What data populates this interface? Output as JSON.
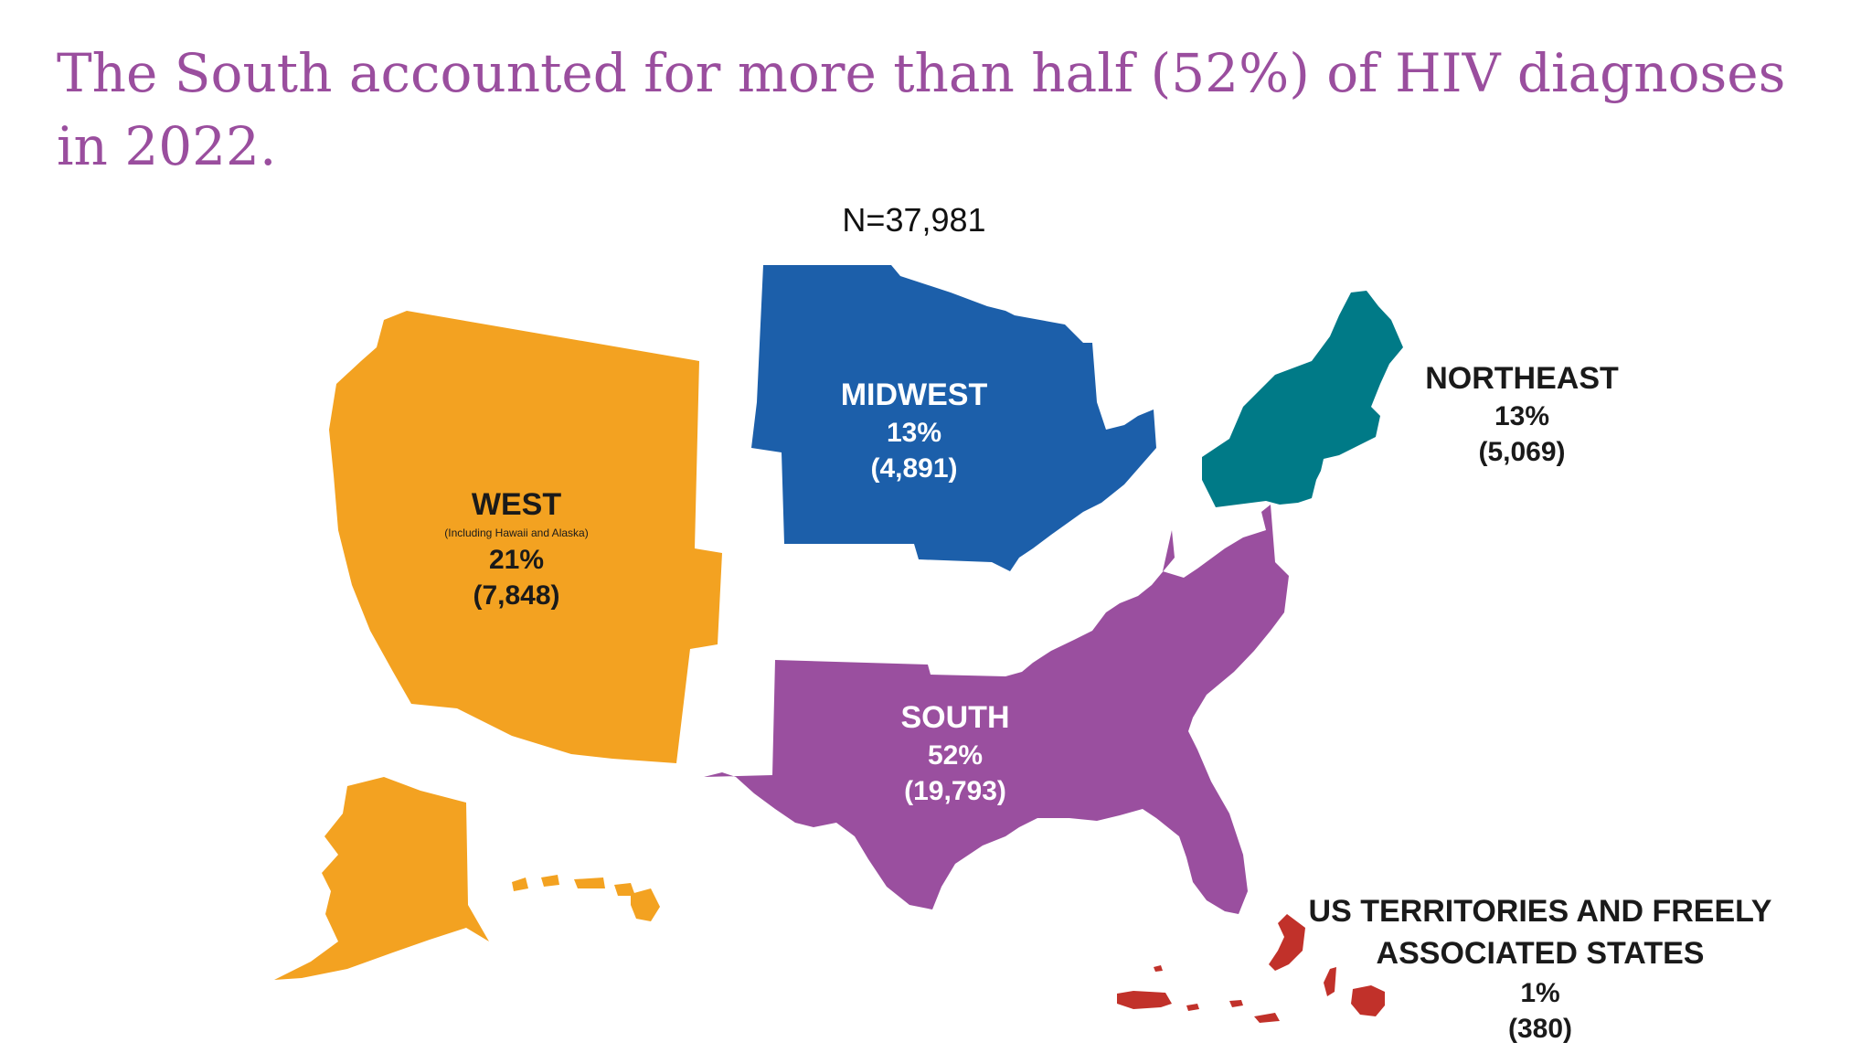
{
  "title": "The South accounted for more than half (52%) of HIV diagnoses in 2022.",
  "total": "N=37,981",
  "colors": {
    "west": "#f3a221",
    "midwest": "#1c5faa",
    "northeast": "#007a87",
    "south": "#9a4f9f",
    "territories": "#c1312a",
    "title": "#9a4e9e"
  },
  "regions": {
    "west": {
      "name": "WEST",
      "note": "(Including Hawaii and Alaska)",
      "percent": "21%",
      "count": "(7,848)"
    },
    "midwest": {
      "name": "MIDWEST",
      "percent": "13%",
      "count": "(4,891)"
    },
    "northeast": {
      "name": "NORTHEAST",
      "percent": "13%",
      "count": "(5,069)"
    },
    "south": {
      "name": "SOUTH",
      "percent": "52%",
      "count": "(19,793)"
    },
    "territories": {
      "name": "US TERRITORIES AND FREELY ASSOCIATED STATES",
      "percent": "1%",
      "count": "(380)"
    }
  }
}
